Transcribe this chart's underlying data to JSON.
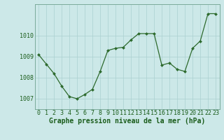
{
  "x": [
    0,
    1,
    2,
    3,
    4,
    5,
    6,
    7,
    8,
    9,
    10,
    11,
    12,
    13,
    14,
    15,
    16,
    17,
    18,
    19,
    20,
    21,
    22,
    23
  ],
  "y": [
    1009.1,
    1008.65,
    1008.2,
    1007.6,
    1007.1,
    1007.0,
    1007.2,
    1007.45,
    1008.3,
    1009.3,
    1009.4,
    1009.45,
    1009.8,
    1010.1,
    1010.1,
    1010.1,
    1008.6,
    1008.7,
    1008.4,
    1008.3,
    1009.4,
    1009.75,
    1011.05,
    1011.05
  ],
  "line_color": "#2d6a2d",
  "marker_color": "#2d6a2d",
  "bg_color": "#cce8e8",
  "grid_color_major": "#aad0d0",
  "grid_color_minor": "#c0e0e0",
  "ylabel_ticks": [
    1007,
    1008,
    1009,
    1010
  ],
  "xlabel": "Graphe pression niveau de la mer (hPa)",
  "ylim": [
    1006.5,
    1011.5
  ],
  "xlim": [
    -0.5,
    23.5
  ],
  "xlabel_fontsize": 7,
  "tick_fontsize": 6
}
